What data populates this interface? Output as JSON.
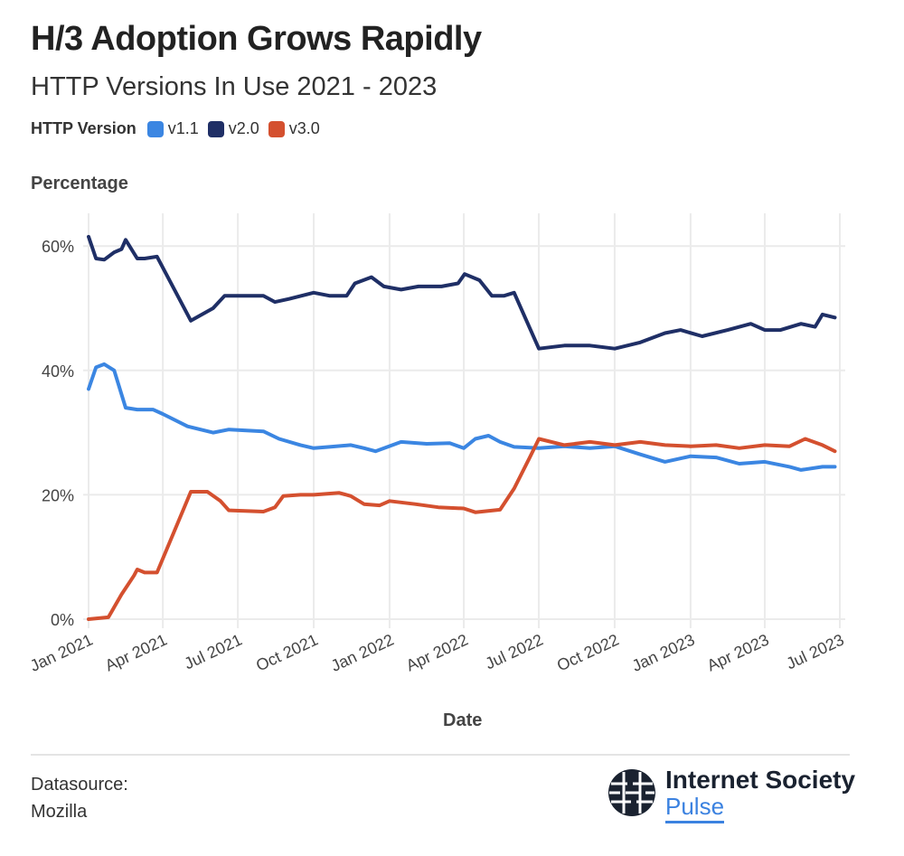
{
  "header": {
    "title": "H/3 Adoption Grows Rapidly",
    "subtitle": "HTTP Versions In Use 2021 - 2023"
  },
  "legend": {
    "title": "HTTP Version",
    "items": [
      {
        "label": "v1.1",
        "color": "#3b86e2"
      },
      {
        "label": "v2.0",
        "color": "#1f2f66"
      },
      {
        "label": "v3.0",
        "color": "#d4502f"
      }
    ]
  },
  "footer": {
    "source_label": "Datasource:",
    "source": "Mozilla",
    "logo_line1": "Internet Society",
    "logo_line2": "Pulse"
  },
  "chart_data": {
    "type": "line",
    "ylabel": "Percentage",
    "xlabel": "Date",
    "ylim": [
      0,
      65
    ],
    "xlim": [
      "2021-01-01",
      "2023-07-01"
    ],
    "yticks": [
      0,
      20,
      40,
      60
    ],
    "ytick_labels": [
      "0%",
      "20%",
      "40%",
      "60%"
    ],
    "xticks": [
      "2021-01-01",
      "2021-04-01",
      "2021-07-01",
      "2021-10-01",
      "2022-01-01",
      "2022-04-01",
      "2022-07-01",
      "2022-10-01",
      "2023-01-01",
      "2023-04-01",
      "2023-07-01"
    ],
    "xtick_labels": [
      "Jan 2021",
      "Apr 2021",
      "Jul 2021",
      "Oct 2021",
      "Jan 2022",
      "Apr 2022",
      "Jul 2022",
      "Oct 2022",
      "Jan 2023",
      "Apr 2023",
      "Jul 2023"
    ],
    "grid": true,
    "legend_position": "top-left",
    "series": [
      {
        "name": "v1.1",
        "color": "#3b86e2",
        "points": [
          [
            "2021-01-01",
            37
          ],
          [
            "2021-01-10",
            40.5
          ],
          [
            "2021-01-20",
            41
          ],
          [
            "2021-02-01",
            40
          ],
          [
            "2021-02-15",
            34
          ],
          [
            "2021-03-01",
            33.7
          ],
          [
            "2021-03-20",
            33.7
          ],
          [
            "2021-04-01",
            33
          ],
          [
            "2021-05-01",
            31
          ],
          [
            "2021-06-01",
            30
          ],
          [
            "2021-06-20",
            30.5
          ],
          [
            "2021-08-01",
            30.2
          ],
          [
            "2021-08-20",
            29
          ],
          [
            "2021-09-15",
            28
          ],
          [
            "2021-10-01",
            27.5
          ],
          [
            "2021-10-20",
            27.7
          ],
          [
            "2021-11-15",
            28
          ],
          [
            "2021-12-01",
            27.5
          ],
          [
            "2021-12-15",
            27
          ],
          [
            "2022-01-15",
            28.5
          ],
          [
            "2022-02-15",
            28.2
          ],
          [
            "2022-03-15",
            28.3
          ],
          [
            "2022-04-01",
            27.5
          ],
          [
            "2022-04-15",
            29
          ],
          [
            "2022-05-01",
            29.5
          ],
          [
            "2022-05-15",
            28.5
          ],
          [
            "2022-06-01",
            27.7
          ],
          [
            "2022-07-01",
            27.5
          ],
          [
            "2022-08-01",
            27.8
          ],
          [
            "2022-09-01",
            27.5
          ],
          [
            "2022-10-01",
            27.8
          ],
          [
            "2022-11-01",
            26.5
          ],
          [
            "2022-12-01",
            25.3
          ],
          [
            "2023-01-01",
            26.2
          ],
          [
            "2023-02-01",
            26
          ],
          [
            "2023-03-01",
            25
          ],
          [
            "2023-04-01",
            25.3
          ],
          [
            "2023-05-01",
            24.5
          ],
          [
            "2023-05-15",
            24
          ],
          [
            "2023-06-10",
            24.5
          ],
          [
            "2023-06-25",
            24.5
          ]
        ]
      },
      {
        "name": "v2.0",
        "color": "#1f2f66",
        "points": [
          [
            "2021-01-01",
            61.5
          ],
          [
            "2021-01-10",
            58
          ],
          [
            "2021-01-20",
            57.8
          ],
          [
            "2021-02-01",
            59
          ],
          [
            "2021-02-10",
            59.5
          ],
          [
            "2021-02-15",
            61
          ],
          [
            "2021-03-01",
            58
          ],
          [
            "2021-03-10",
            58
          ],
          [
            "2021-03-25",
            58.3
          ],
          [
            "2021-05-05",
            48
          ],
          [
            "2021-06-01",
            50
          ],
          [
            "2021-06-15",
            52
          ],
          [
            "2021-08-01",
            52
          ],
          [
            "2021-08-15",
            51
          ],
          [
            "2021-09-01",
            51.5
          ],
          [
            "2021-10-01",
            52.5
          ],
          [
            "2021-10-20",
            52
          ],
          [
            "2021-11-10",
            52
          ],
          [
            "2021-11-20",
            54
          ],
          [
            "2021-12-10",
            55
          ],
          [
            "2021-12-25",
            53.5
          ],
          [
            "2022-01-15",
            53
          ],
          [
            "2022-02-05",
            53.5
          ],
          [
            "2022-03-05",
            53.5
          ],
          [
            "2022-03-25",
            54
          ],
          [
            "2022-04-02",
            55.5
          ],
          [
            "2022-04-20",
            54.5
          ],
          [
            "2022-05-05",
            52
          ],
          [
            "2022-05-20",
            52
          ],
          [
            "2022-06-01",
            52.5
          ],
          [
            "2022-07-01",
            43.5
          ],
          [
            "2022-08-01",
            44
          ],
          [
            "2022-09-01",
            44
          ],
          [
            "2022-10-01",
            43.5
          ],
          [
            "2022-11-01",
            44.5
          ],
          [
            "2022-12-01",
            46
          ],
          [
            "2022-12-20",
            46.5
          ],
          [
            "2023-01-15",
            45.5
          ],
          [
            "2023-02-15",
            46.5
          ],
          [
            "2023-03-15",
            47.5
          ],
          [
            "2023-04-01",
            46.5
          ],
          [
            "2023-04-20",
            46.5
          ],
          [
            "2023-05-15",
            47.5
          ],
          [
            "2023-06-01",
            47
          ],
          [
            "2023-06-10",
            49
          ],
          [
            "2023-06-25",
            48.5
          ]
        ]
      },
      {
        "name": "v3.0",
        "color": "#d4502f",
        "points": [
          [
            "2021-01-01",
            0
          ],
          [
            "2021-01-25",
            0.3
          ],
          [
            "2021-02-10",
            4
          ],
          [
            "2021-02-25",
            7
          ],
          [
            "2021-03-01",
            8
          ],
          [
            "2021-03-10",
            7.5
          ],
          [
            "2021-03-25",
            7.5
          ],
          [
            "2021-05-05",
            20.5
          ],
          [
            "2021-05-25",
            20.5
          ],
          [
            "2021-06-10",
            19
          ],
          [
            "2021-06-20",
            17.5
          ],
          [
            "2021-08-01",
            17.3
          ],
          [
            "2021-08-15",
            18
          ],
          [
            "2021-08-25",
            19.8
          ],
          [
            "2021-09-15",
            20
          ],
          [
            "2021-10-01",
            20
          ],
          [
            "2021-11-01",
            20.3
          ],
          [
            "2021-11-15",
            19.8
          ],
          [
            "2021-12-01",
            18.5
          ],
          [
            "2021-12-20",
            18.3
          ],
          [
            "2022-01-01",
            19
          ],
          [
            "2022-02-01",
            18.5
          ],
          [
            "2022-03-01",
            18
          ],
          [
            "2022-04-01",
            17.8
          ],
          [
            "2022-04-15",
            17.2
          ],
          [
            "2022-05-15",
            17.6
          ],
          [
            "2022-06-01",
            21
          ],
          [
            "2022-06-20",
            26
          ],
          [
            "2022-07-01",
            29
          ],
          [
            "2022-08-01",
            28
          ],
          [
            "2022-09-01",
            28.5
          ],
          [
            "2022-10-01",
            28
          ],
          [
            "2022-11-01",
            28.5
          ],
          [
            "2022-12-01",
            28
          ],
          [
            "2023-01-01",
            27.8
          ],
          [
            "2023-02-01",
            28
          ],
          [
            "2023-03-01",
            27.5
          ],
          [
            "2023-04-01",
            28
          ],
          [
            "2023-05-01",
            27.8
          ],
          [
            "2023-05-20",
            29
          ],
          [
            "2023-06-10",
            28
          ],
          [
            "2023-06-25",
            27
          ]
        ]
      }
    ]
  }
}
